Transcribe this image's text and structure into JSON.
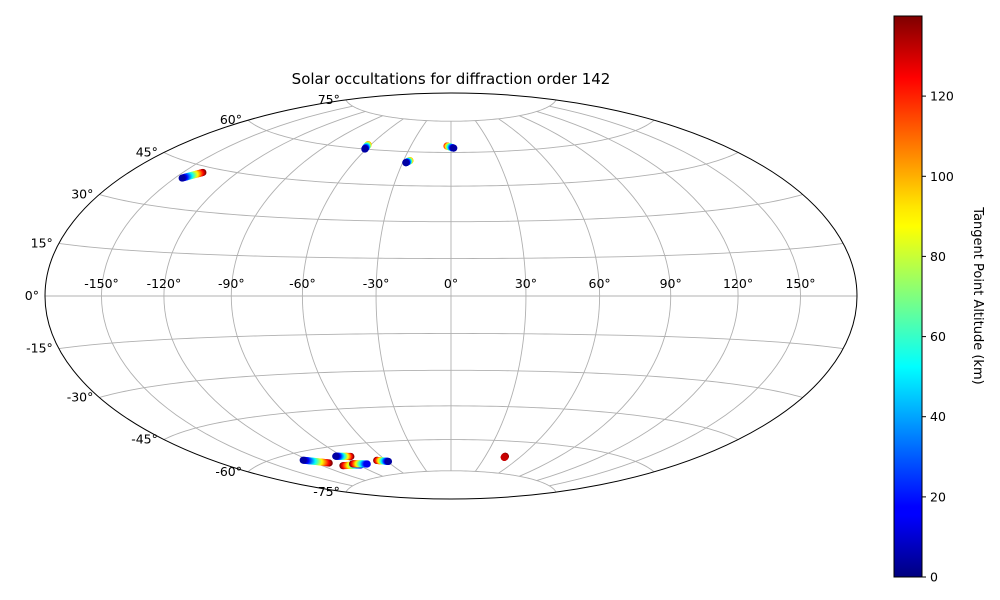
{
  "chart_data": {
    "type": "scatter",
    "projection": "hammer",
    "title": "Solar occultations for diffraction order 142",
    "grid": true,
    "lon_ticks": [
      -150,
      -120,
      -90,
      -60,
      -30,
      0,
      30,
      60,
      90,
      120,
      150
    ],
    "lat_ticks": [
      75,
      60,
      45,
      30,
      15,
      0,
      -15,
      -30,
      -45,
      -60,
      -75
    ],
    "lon_tick_labels": [
      "-150°",
      "-120°",
      "-90°",
      "-60°",
      "-30°",
      "0°",
      "30°",
      "60°",
      "90°",
      "120°",
      "150°"
    ],
    "lat_tick_labels": [
      "75°",
      "60°",
      "45°",
      "30°",
      "15°",
      "0°",
      "-15°",
      "-30°",
      "-45°",
      "-60°",
      "-75°"
    ],
    "colorbar": {
      "label": "Tangent Point Altitude (km)",
      "colormap": "jet",
      "range": [
        0,
        140
      ],
      "ticks": [
        0,
        20,
        40,
        60,
        80,
        100,
        120
      ],
      "tick_labels": [
        "0",
        "20",
        "40",
        "60",
        "80",
        "100",
        "120"
      ]
    },
    "occultations": [
      {
        "lon_start": -146,
        "lat_start": 40,
        "lon_end": -139,
        "lat_end": 43,
        "alt_start": 5,
        "alt_end": 140
      },
      {
        "lon_start": -62,
        "lat_start": 62,
        "lon_end": -61,
        "lat_end": 60,
        "alt_start": 100,
        "alt_end": 5
      },
      {
        "lon_start": -28,
        "lat_start": 55,
        "lon_end": -26,
        "lat_end": 56,
        "alt_start": 5,
        "alt_end": 100
      },
      {
        "lon_start": -3,
        "lat_start": 63,
        "lon_end": 2,
        "lat_end": 62,
        "alt_start": 120,
        "alt_end": 5
      },
      {
        "lon_start": -124,
        "lat_start": -63,
        "lon_end": -110,
        "lat_end": -66,
        "alt_start": 5,
        "alt_end": 140
      },
      {
        "lon_start": -95,
        "lat_start": -64,
        "lon_end": -84,
        "lat_end": -65,
        "alt_start": 5,
        "alt_end": 140
      },
      {
        "lon_start": -104,
        "lat_start": -68,
        "lon_end": -88,
        "lat_end": -69,
        "alt_start": 140,
        "alt_end": 15
      },
      {
        "lon_start": -93,
        "lat_start": -68,
        "lon_end": -81,
        "lat_end": -69,
        "alt_start": 140,
        "alt_end": 15
      },
      {
        "lon_start": -68,
        "lat_start": -68,
        "lon_end": -59,
        "lat_end": -69,
        "alt_start": 140,
        "alt_end": 5
      },
      {
        "lon_start": 47,
        "lat_start": -67,
        "lon_end": 47,
        "lat_end": -67.5,
        "alt_start": 140,
        "alt_end": 130
      }
    ]
  }
}
